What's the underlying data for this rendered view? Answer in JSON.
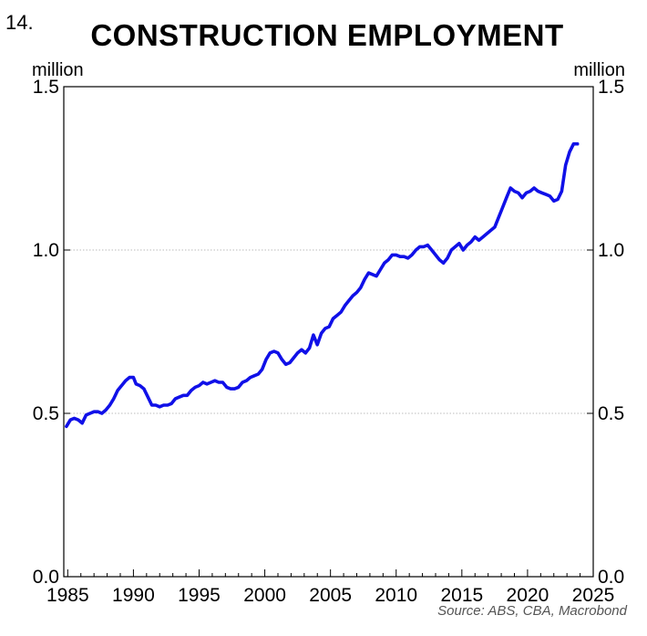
{
  "figure_number": "14.",
  "chart_data": {
    "type": "line",
    "title": "CONSTRUCTION EMPLOYMENT",
    "ylabel_left": "million",
    "ylabel_right": "million",
    "source": "Source: ABS, CBA, Macrobond",
    "xlim": [
      1984.7,
      2025.0
    ],
    "ylim": [
      0.0,
      1.5
    ],
    "x_ticks": [
      1985,
      1990,
      1995,
      2000,
      2005,
      2010,
      2015,
      2020,
      2025
    ],
    "x_tick_labels": [
      "1985",
      "1990",
      "1995",
      "2000",
      "2005",
      "2010",
      "2015",
      "2020",
      "2025"
    ],
    "y_ticks": [
      0.0,
      0.5,
      1.0,
      1.5
    ],
    "y_tick_labels": [
      "0.0",
      "0.5",
      "1.0",
      "1.5"
    ],
    "grid": "horizontal dotted",
    "series": [
      {
        "color": "#1010e8",
        "x": [
          1984.9,
          1985.2,
          1985.5,
          1985.8,
          1986.1,
          1986.4,
          1986.7,
          1987.0,
          1987.3,
          1987.6,
          1987.9,
          1988.2,
          1988.5,
          1988.8,
          1989.1,
          1989.4,
          1989.7,
          1990.0,
          1990.2,
          1990.5,
          1990.8,
          1991.1,
          1991.4,
          1991.7,
          1992.0,
          1992.3,
          1992.6,
          1992.9,
          1993.2,
          1993.5,
          1993.8,
          1994.1,
          1994.4,
          1994.7,
          1995.0,
          1995.3,
          1995.6,
          1995.9,
          1996.2,
          1996.5,
          1996.8,
          1997.1,
          1997.4,
          1997.7,
          1998.0,
          1998.3,
          1998.6,
          1998.9,
          1999.2,
          1999.5,
          1999.8,
          2000.1,
          2000.4,
          2000.7,
          2001.0,
          2001.3,
          2001.6,
          2001.9,
          2002.2,
          2002.5,
          2002.8,
          2003.1,
          2003.4,
          2003.7,
          2004.0,
          2004.3,
          2004.6,
          2004.9,
          2005.2,
          2005.5,
          2005.8,
          2006.1,
          2006.4,
          2006.7,
          2007.0,
          2007.3,
          2007.6,
          2007.9,
          2008.2,
          2008.5,
          2008.8,
          2009.1,
          2009.4,
          2009.7,
          2010.0,
          2010.3,
          2010.6,
          2010.9,
          2011.2,
          2011.5,
          2011.8,
          2012.1,
          2012.4,
          2012.7,
          2013.0,
          2013.3,
          2013.6,
          2013.9,
          2014.2,
          2014.5,
          2014.8,
          2015.1,
          2015.4,
          2015.7,
          2016.0,
          2016.3,
          2016.6,
          2016.9,
          2017.2,
          2017.5,
          2017.8,
          2018.1,
          2018.4,
          2018.7,
          2019.0,
          2019.3,
          2019.6,
          2019.9,
          2020.2,
          2020.5,
          2020.8,
          2021.1,
          2021.4,
          2021.7,
          2022.0,
          2022.3,
          2022.6,
          2022.9,
          2023.2,
          2023.5,
          2023.8
        ],
        "y": [
          0.46,
          0.48,
          0.485,
          0.48,
          0.47,
          0.495,
          0.5,
          0.505,
          0.505,
          0.5,
          0.51,
          0.525,
          0.545,
          0.57,
          0.585,
          0.6,
          0.61,
          0.61,
          0.59,
          0.585,
          0.575,
          0.55,
          0.525,
          0.525,
          0.52,
          0.525,
          0.525,
          0.53,
          0.545,
          0.55,
          0.555,
          0.555,
          0.57,
          0.58,
          0.585,
          0.595,
          0.59,
          0.595,
          0.6,
          0.595,
          0.595,
          0.58,
          0.575,
          0.575,
          0.58,
          0.595,
          0.6,
          0.61,
          0.615,
          0.62,
          0.635,
          0.665,
          0.685,
          0.69,
          0.685,
          0.665,
          0.65,
          0.655,
          0.67,
          0.685,
          0.695,
          0.685,
          0.7,
          0.74,
          0.71,
          0.745,
          0.76,
          0.765,
          0.79,
          0.8,
          0.81,
          0.83,
          0.845,
          0.86,
          0.87,
          0.885,
          0.91,
          0.93,
          0.925,
          0.92,
          0.94,
          0.96,
          0.97,
          0.985,
          0.985,
          0.98,
          0.98,
          0.975,
          0.985,
          1.0,
          1.01,
          1.01,
          1.015,
          1.0,
          0.985,
          0.97,
          0.96,
          0.975,
          1.0,
          1.01,
          1.02,
          1.0,
          1.015,
          1.025,
          1.04,
          1.03,
          1.04,
          1.05,
          1.06,
          1.07,
          1.1,
          1.13,
          1.16,
          1.19,
          1.18,
          1.175,
          1.16,
          1.175,
          1.18,
          1.19,
          1.18,
          1.175,
          1.17,
          1.165,
          1.15,
          1.155,
          1.18,
          1.26,
          1.3,
          1.325,
          1.325
        ]
      }
    ]
  }
}
